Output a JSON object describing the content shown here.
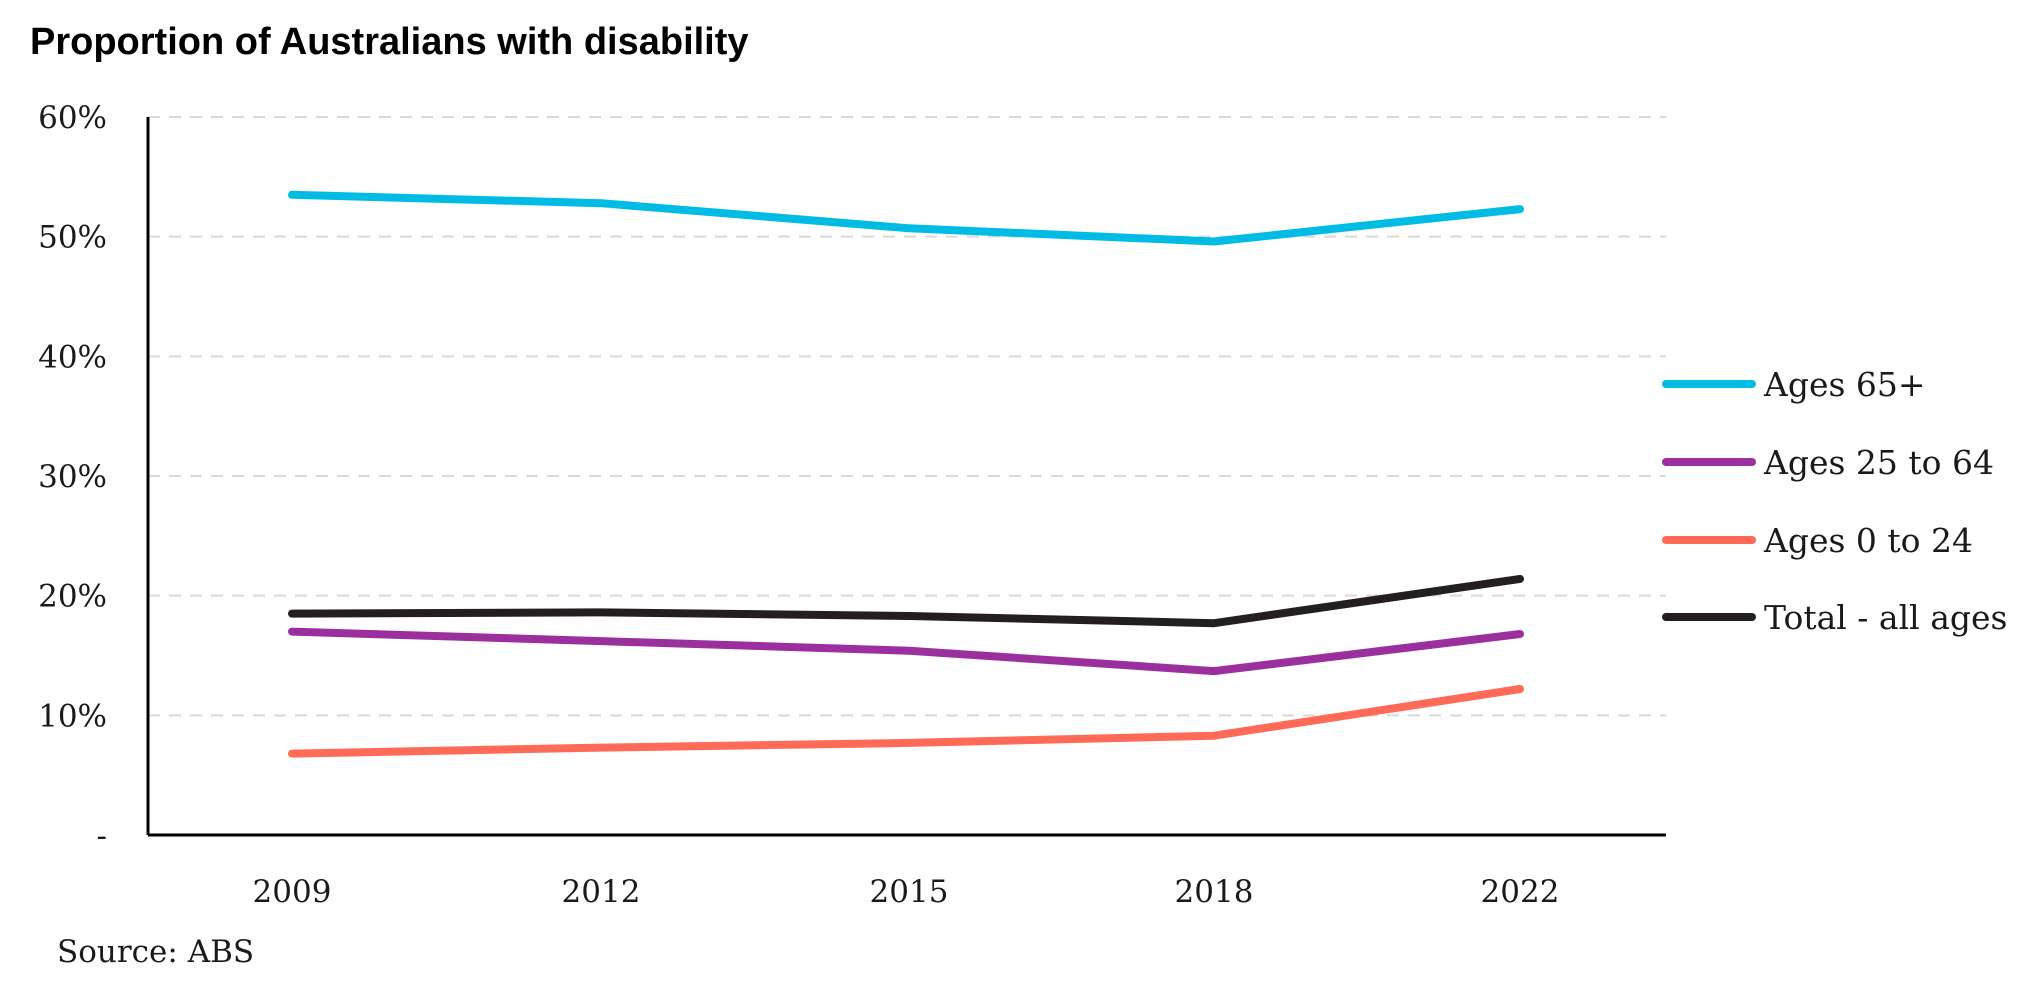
{
  "chart_data": {
    "type": "line",
    "title": "Proportion of Australians with disability",
    "source": "Source: ABS",
    "categories": [
      "2009",
      "2012",
      "2015",
      "2018",
      "2022"
    ],
    "y_ticks": [
      {
        "value": 0,
        "label": "-"
      },
      {
        "value": 10,
        "label": "10%"
      },
      {
        "value": 20,
        "label": "20%"
      },
      {
        "value": 30,
        "label": "30%"
      },
      {
        "value": 40,
        "label": "40%"
      },
      {
        "value": 50,
        "label": "50%"
      },
      {
        "value": 60,
        "label": "60%"
      }
    ],
    "ylim": [
      0,
      60
    ],
    "grid": true,
    "legend_position": "right",
    "series": [
      {
        "name": "Ages 65+",
        "color": "#00bce4",
        "values": [
          53.5,
          52.8,
          50.7,
          49.6,
          52.3
        ]
      },
      {
        "name": "Ages 25 to 64",
        "color": "#9b2f9e",
        "values": [
          17.0,
          16.2,
          15.4,
          13.7,
          16.8
        ]
      },
      {
        "name": "Ages 0 to 24",
        "color": "#ff6b57",
        "values": [
          6.8,
          7.3,
          7.7,
          8.3,
          12.2
        ]
      },
      {
        "name": "Total - all ages",
        "color": "#231f20",
        "values": [
          18.5,
          18.6,
          18.3,
          17.7,
          21.4
        ]
      }
    ]
  }
}
